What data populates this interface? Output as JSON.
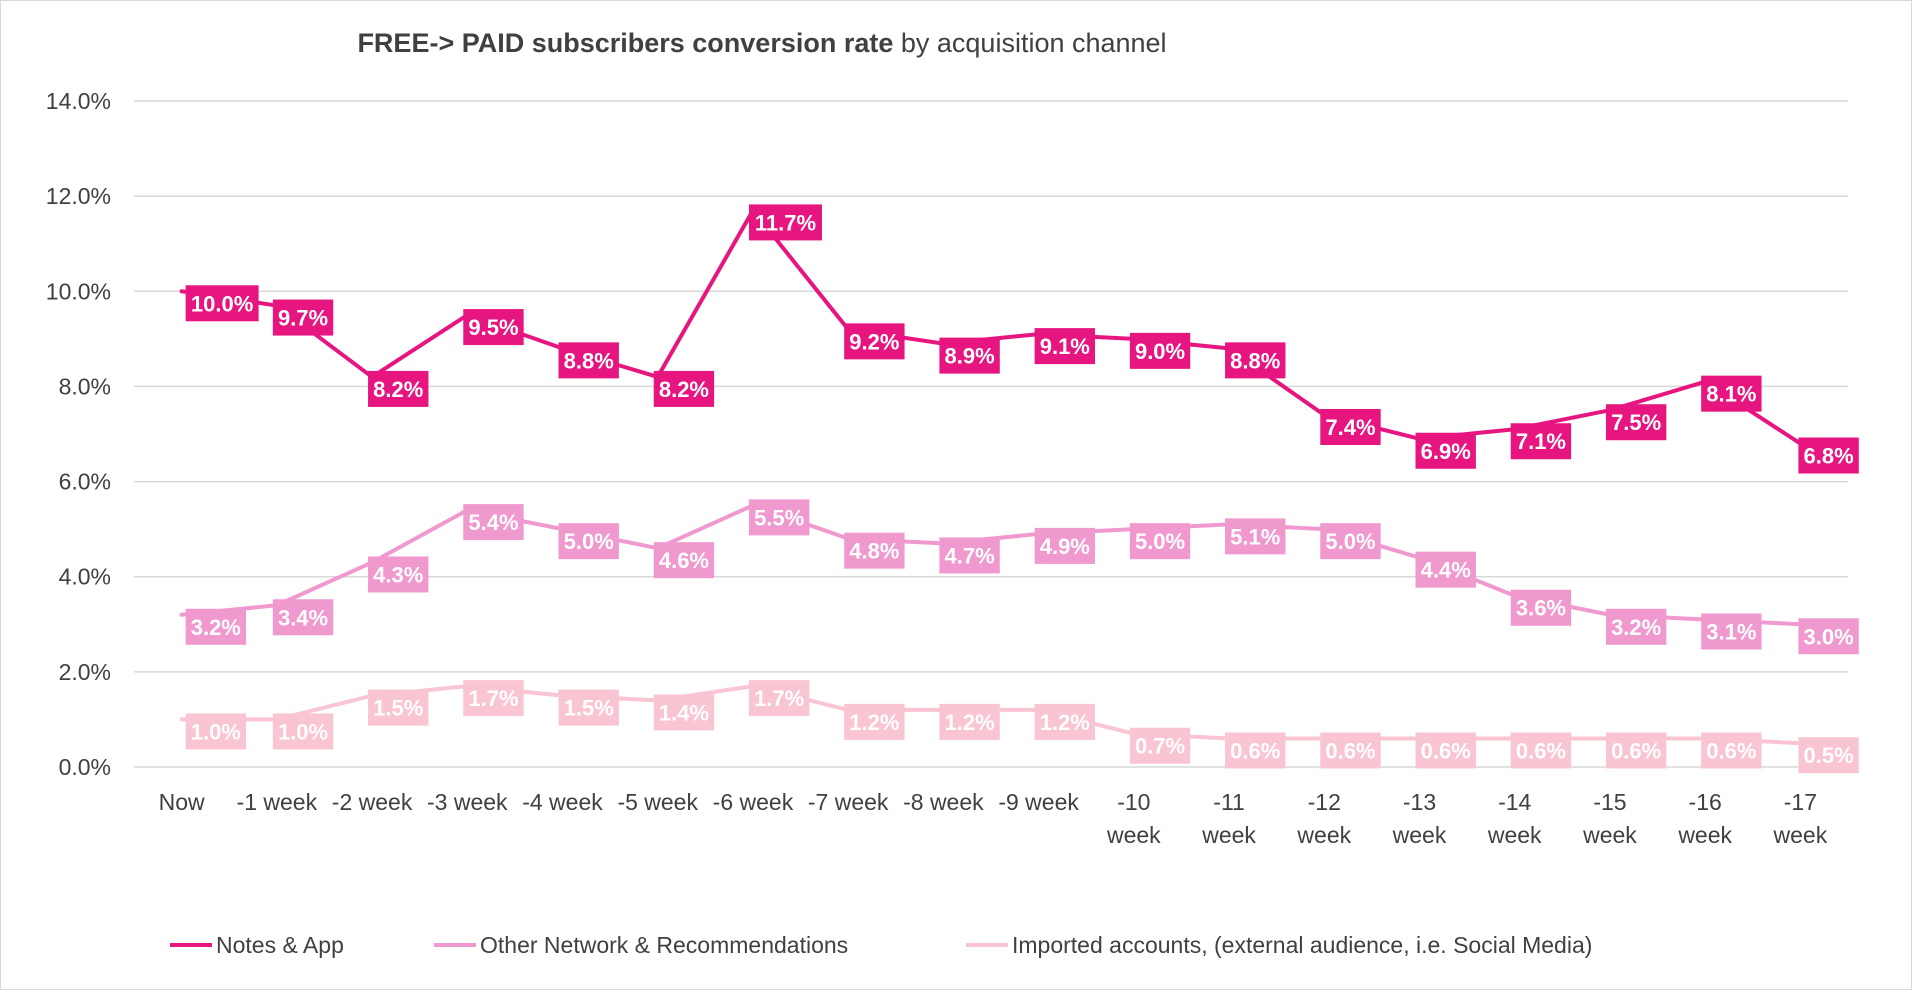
{
  "chart_data": {
    "type": "line",
    "title_bold": "FREE-> PAID subscribers conversion rate",
    "title_normal": " by acquisition channel",
    "xlabel": "",
    "ylabel": "",
    "ylim": [
      0,
      14
    ],
    "y_ticks": [
      "0.0%",
      "2.0%",
      "4.0%",
      "6.0%",
      "8.0%",
      "10.0%",
      "12.0%",
      "14.0%"
    ],
    "grid": true,
    "legend_position": "bottom",
    "categories": [
      [
        "Now"
      ],
      [
        "-1 week"
      ],
      [
        "-2 week"
      ],
      [
        "-3 week"
      ],
      [
        "-4 week"
      ],
      [
        "-5 week"
      ],
      [
        "-6 week"
      ],
      [
        "-7 week"
      ],
      [
        "-8 week"
      ],
      [
        "-9 week"
      ],
      [
        "-10",
        "week"
      ],
      [
        "-11",
        "week"
      ],
      [
        "-12",
        "week"
      ],
      [
        "-13",
        "week"
      ],
      [
        "-14",
        "week"
      ],
      [
        "-15",
        "week"
      ],
      [
        "-16",
        "week"
      ],
      [
        "-17",
        "week"
      ]
    ],
    "series": [
      {
        "name": "Notes & App",
        "color": "#e6157f",
        "label_text_color": "#ffffff",
        "values": [
          10.0,
          9.7,
          8.2,
          9.5,
          8.8,
          8.2,
          11.7,
          9.2,
          8.9,
          9.1,
          9.0,
          8.8,
          7.4,
          6.9,
          7.1,
          7.5,
          8.1,
          6.8
        ],
        "labels": [
          "10.0%",
          "9.7%",
          "8.2%",
          "9.5%",
          "8.8%",
          "8.2%",
          "11.7%",
          "9.2%",
          "8.9%",
          "9.1%",
          "9.0%",
          "8.8%",
          "7.4%",
          "6.9%",
          "7.1%",
          "7.5%",
          "8.1%",
          "6.8%"
        ]
      },
      {
        "name": "Other Network & Recommendations",
        "color": "#f099cf",
        "label_text_color": "#ffffff",
        "values": [
          3.2,
          3.4,
          4.3,
          5.4,
          5.0,
          4.6,
          5.5,
          4.8,
          4.7,
          4.9,
          5.0,
          5.1,
          5.0,
          4.4,
          3.6,
          3.2,
          3.1,
          3.0
        ],
        "labels": [
          "3.2%",
          "3.4%",
          "4.3%",
          "5.4%",
          "5.0%",
          "4.6%",
          "5.5%",
          "4.8%",
          "4.7%",
          "4.9%",
          "5.0%",
          "5.1%",
          "5.0%",
          "4.4%",
          "3.6%",
          "3.2%",
          "3.1%",
          "3.0%"
        ]
      },
      {
        "name": "Imported accounts, (external audience, i.e. Social Media)",
        "color": "#f9c5d3",
        "label_text_color": "#ffffff",
        "values": [
          1.0,
          1.0,
          1.5,
          1.7,
          1.5,
          1.4,
          1.7,
          1.2,
          1.2,
          1.2,
          0.7,
          0.6,
          0.6,
          0.6,
          0.6,
          0.6,
          0.6,
          0.5
        ],
        "labels": [
          "1.0%",
          "1.0%",
          "1.5%",
          "1.7%",
          "1.5%",
          "1.4%",
          "1.7%",
          "1.2%",
          "1.2%",
          "1.2%",
          "0.7%",
          "0.6%",
          "0.6%",
          "0.6%",
          "0.6%",
          "0.6%",
          "0.6%",
          "0.5%"
        ]
      }
    ]
  }
}
